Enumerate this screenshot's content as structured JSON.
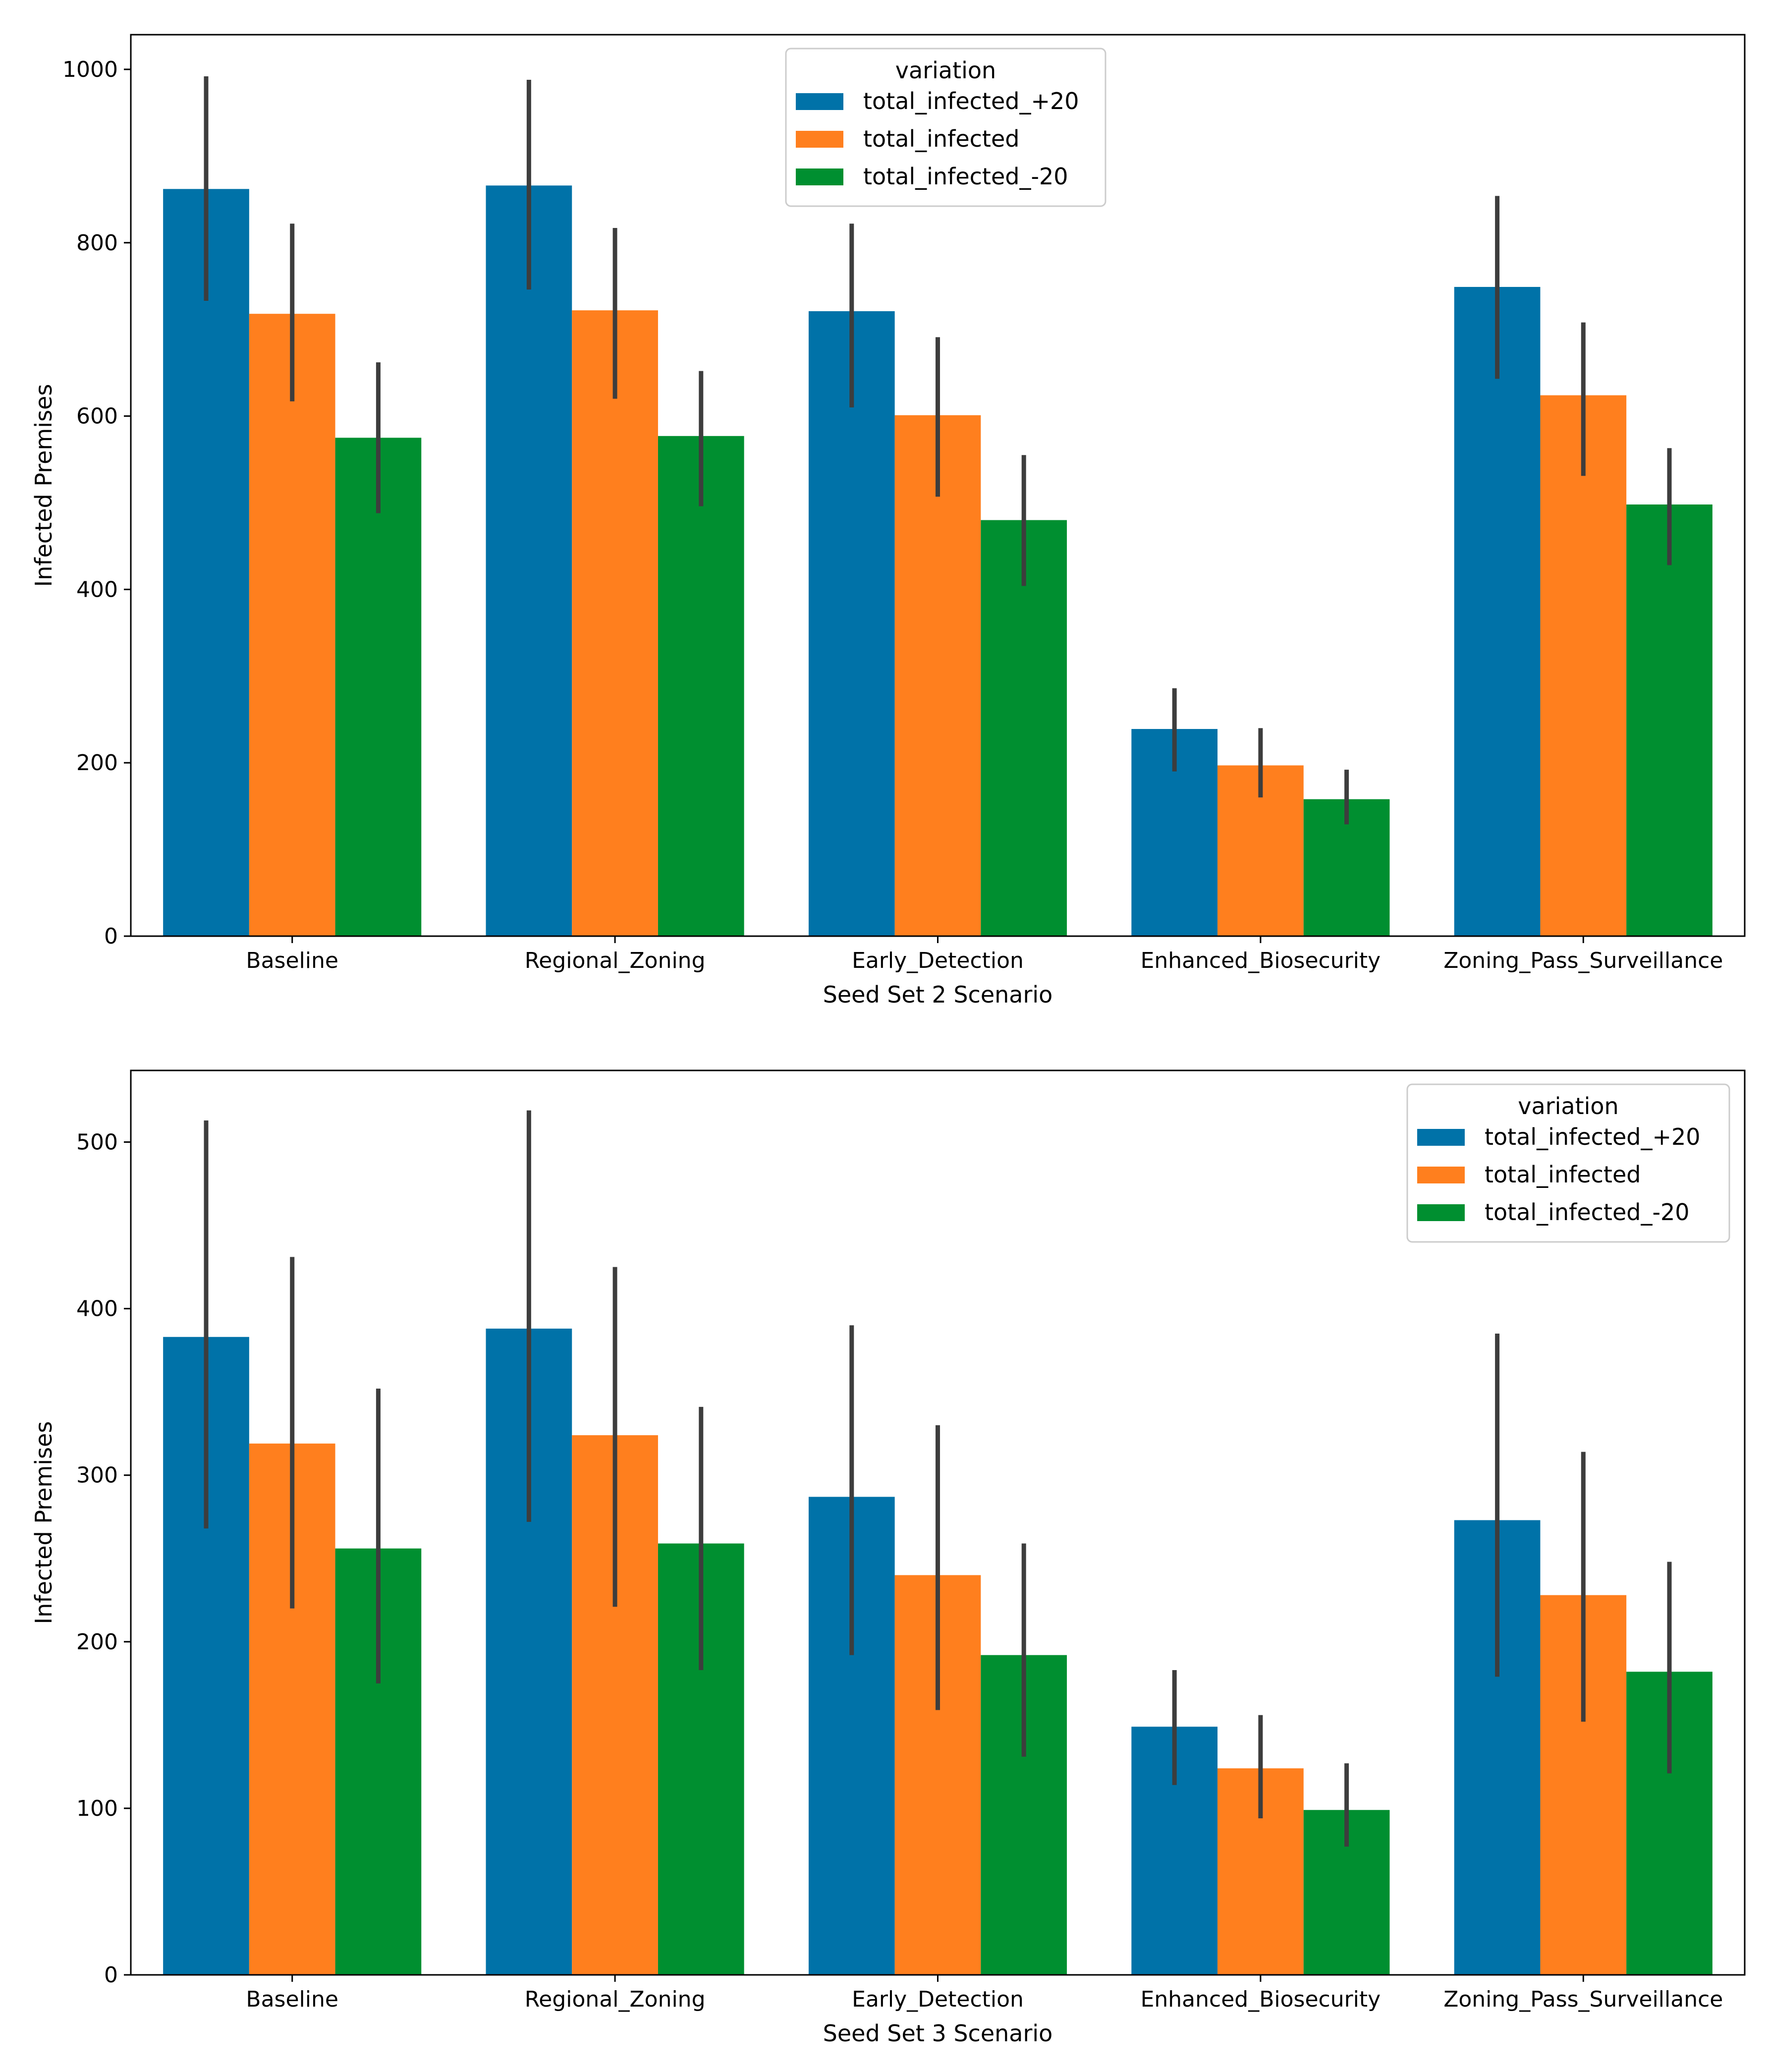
{
  "chart_data": [
    {
      "type": "bar",
      "xlabel": "Seed Set 2 Scenario",
      "ylabel": "Infected Premises",
      "ylim": [
        0,
        1040
      ],
      "yticks": [
        0,
        200,
        400,
        600,
        800,
        1000
      ],
      "categories": [
        "Baseline",
        "Regional_Zoning",
        "Early_Detection",
        "Enhanced_Biosecurity",
        "Zoning_Pass_Surveillance"
      ],
      "legend": {
        "title": "variation",
        "placement": "top-center"
      },
      "series": [
        {
          "name": "total_infected_+20",
          "color": "#0072a8",
          "values": [
            862,
            866,
            721,
            239,
            749
          ],
          "err_low": [
            733,
            746,
            610,
            190,
            643
          ],
          "err_high": [
            992,
            988,
            822,
            286,
            854
          ]
        },
        {
          "name": "total_infected",
          "color": "#ff7f1e",
          "values": [
            718,
            722,
            601,
            197,
            624
          ],
          "err_low": [
            617,
            620,
            507,
            160,
            531
          ],
          "err_high": [
            822,
            817,
            691,
            240,
            708
          ]
        },
        {
          "name": "total_infected_-20",
          "color": "#008f30",
          "values": [
            575,
            577,
            480,
            158,
            498
          ],
          "err_low": [
            488,
            496,
            404,
            129,
            428
          ],
          "err_high": [
            662,
            652,
            555,
            192,
            563
          ]
        }
      ]
    },
    {
      "type": "bar",
      "xlabel": "Seed Set 3 Scenario",
      "ylabel": "Infected Premises",
      "ylim": [
        0,
        543
      ],
      "yticks": [
        0,
        100,
        200,
        300,
        400,
        500
      ],
      "categories": [
        "Baseline",
        "Regional_Zoning",
        "Early_Detection",
        "Enhanced_Biosecurity",
        "Zoning_Pass_Surveillance"
      ],
      "legend": {
        "title": "variation",
        "placement": "top-right"
      },
      "series": [
        {
          "name": "total_infected_+20",
          "color": "#0072a8",
          "values": [
            383,
            388,
            287,
            149,
            273
          ],
          "err_low": [
            268,
            272,
            192,
            114,
            179
          ],
          "err_high": [
            513,
            519,
            390,
            183,
            385
          ]
        },
        {
          "name": "total_infected",
          "color": "#ff7f1e",
          "values": [
            319,
            324,
            240,
            124,
            228
          ],
          "err_low": [
            220,
            221,
            159,
            94,
            152
          ],
          "err_high": [
            431,
            425,
            330,
            156,
            314
          ]
        },
        {
          "name": "total_infected_-20",
          "color": "#008f30",
          "values": [
            256,
            259,
            192,
            99,
            182
          ],
          "err_low": [
            175,
            183,
            131,
            77,
            121
          ],
          "err_high": [
            352,
            341,
            259,
            127,
            248
          ]
        }
      ]
    }
  ]
}
